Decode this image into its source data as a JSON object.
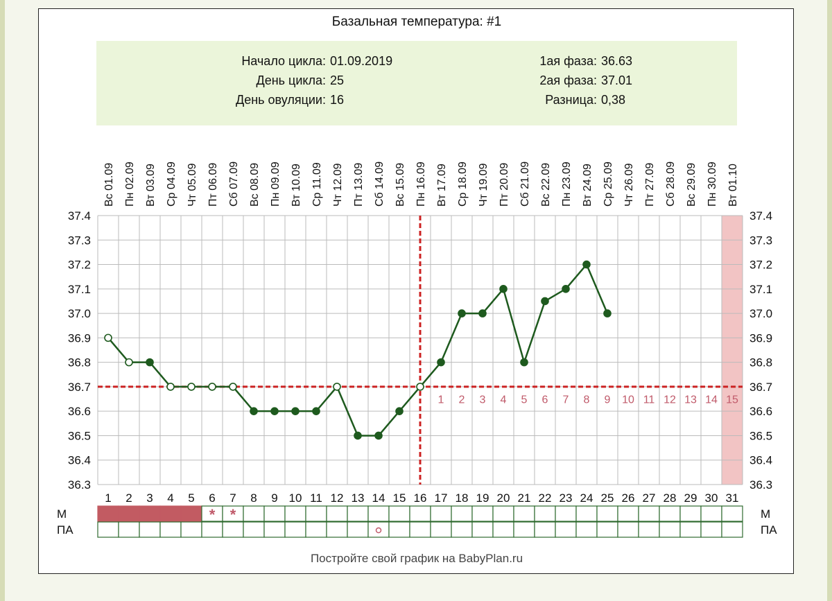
{
  "title": "Базальная температура: #1",
  "info": {
    "cycle_start_label": "Начало цикла:",
    "cycle_start_value": "01.09.2019",
    "cycle_day_label": "День цикла:",
    "cycle_day_value": "25",
    "ovulation_day_label": "День овуляции:",
    "ovulation_day_value": "16",
    "phase1_label": "1ая фаза:",
    "phase1_value": "36.63",
    "phase2_label": "2ая фаза:",
    "phase2_value": "37.01",
    "diff_label": "Разница:",
    "diff_value": "0,38"
  },
  "footer": "Постройте свой график на BabyPlan.ru",
  "chart_data": {
    "type": "line",
    "dates": [
      "Вс 01.09",
      "Пн 02.09",
      "Вт 03.09",
      "Ср 04.09",
      "Чт 05.09",
      "Пт 06.09",
      "Сб 07.09",
      "Вс 08.09",
      "Пн 09.09",
      "Вт 10.09",
      "Ср 11.09",
      "Чт 12.09",
      "Пт 13.09",
      "Сб 14.09",
      "Вс 15.09",
      "Пн 16.09",
      "Вт 17.09",
      "Ср 18.09",
      "Чт 19.09",
      "Пт 20.09",
      "Сб 21.09",
      "Вс 22.09",
      "Пн 23.09",
      "Вт 24.09",
      "Ср 25.09",
      "Чт 26.09",
      "Пт 27.09",
      "Сб 28.09",
      "Вс 29.09",
      "Пн 30.09",
      "Вт 01.10"
    ],
    "days": [
      "1",
      "2",
      "3",
      "4",
      "5",
      "6",
      "7",
      "8",
      "9",
      "10",
      "11",
      "12",
      "13",
      "14",
      "15",
      "16",
      "17",
      "18",
      "19",
      "20",
      "21",
      "22",
      "23",
      "24",
      "25",
      "26",
      "27",
      "28",
      "29",
      "30",
      "31"
    ],
    "temperatures": [
      36.9,
      36.8,
      36.8,
      36.7,
      36.7,
      36.7,
      36.7,
      36.6,
      36.6,
      36.6,
      36.6,
      36.7,
      36.5,
      36.5,
      36.6,
      36.7,
      36.8,
      37.0,
      37.0,
      37.1,
      36.8,
      37.05,
      37.1,
      37.2,
      37.0
    ],
    "open_markers": [
      true,
      true,
      false,
      true,
      true,
      true,
      true,
      false,
      false,
      false,
      false,
      true,
      false,
      false,
      false,
      true,
      false,
      false,
      false,
      false,
      false,
      false,
      false,
      false,
      false
    ],
    "ylim": [
      36.3,
      37.4
    ],
    "yticks": [
      "37.4",
      "37.3",
      "37.2",
      "37.1",
      "37.0",
      "36.9",
      "36.8",
      "36.7",
      "36.6",
      "36.5",
      "36.4",
      "36.3"
    ],
    "coverline": 36.7,
    "ovulation_day": 16,
    "luteal_labels": [
      "1",
      "2",
      "3",
      "4",
      "5",
      "6",
      "7",
      "8",
      "9",
      "10",
      "11",
      "12",
      "13",
      "14",
      "15"
    ],
    "highlight_day": 31,
    "rows": [
      {
        "label": "М",
        "filled_days": [
          1,
          2,
          3,
          4,
          5
        ],
        "marks": [
          {
            "day": 6,
            "symbol": "*"
          },
          {
            "day": 7,
            "symbol": "*"
          }
        ]
      },
      {
        "label": "ПА",
        "filled_days": [],
        "marks": [
          {
            "day": 14,
            "symbol": "o"
          }
        ]
      }
    ],
    "grid": true,
    "colors": {
      "line": "#1e5a1e",
      "coverline": "#cc2222",
      "phase_labels": "#c05a6a",
      "highlight": "#f2c4c4",
      "menses": "#c25b62",
      "table_border": "#2e6a2e",
      "infobox": "#ebf5da"
    }
  }
}
